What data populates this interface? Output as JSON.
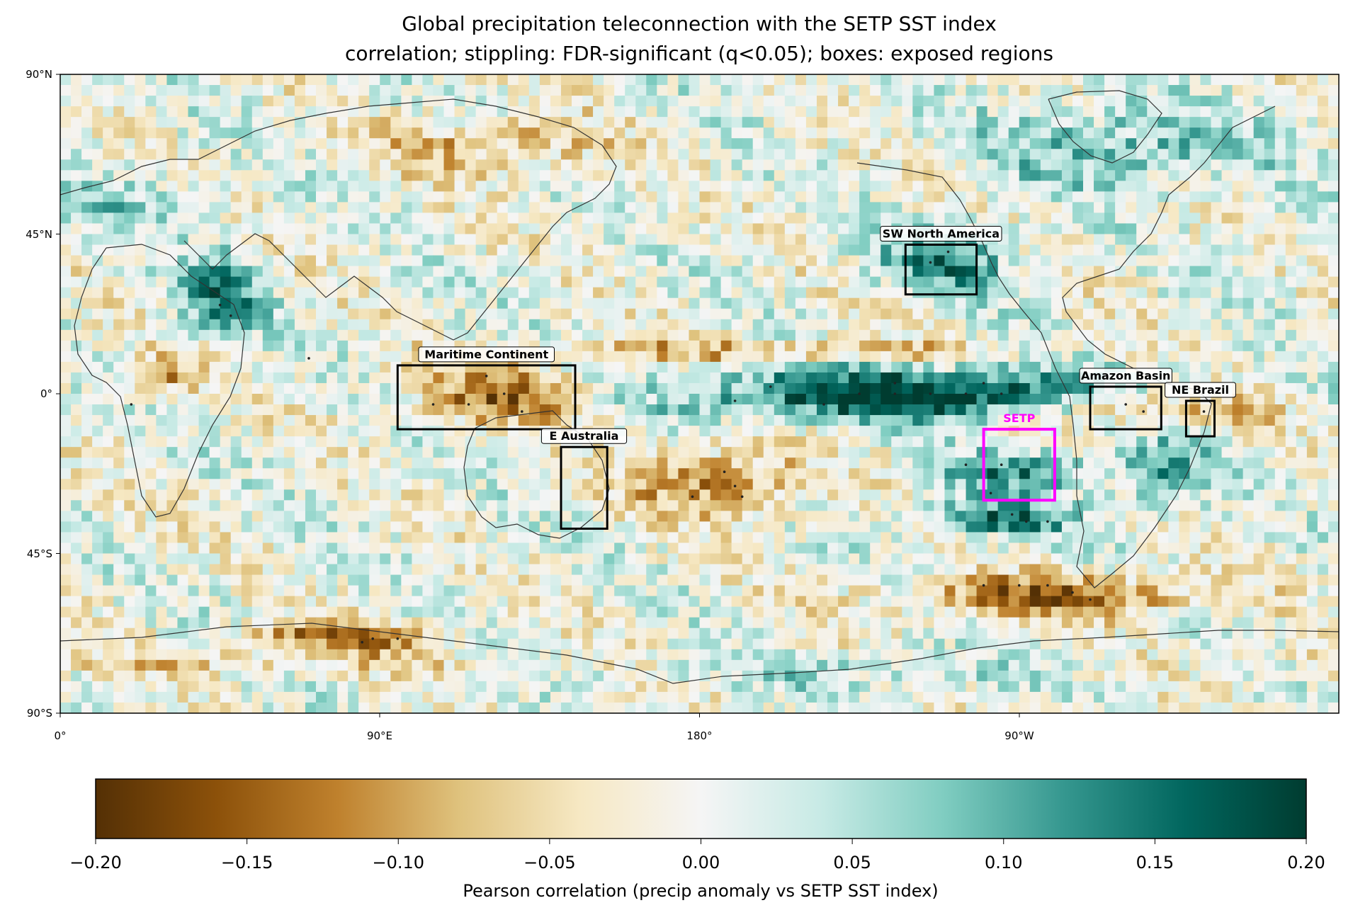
{
  "title_line1": "Global precipitation teleconnection with the SETP SST index",
  "title_line2": "correlation; stippling: FDR-significant (q<0.05); boxes: exposed regions",
  "lat_ticks": [
    "90°N",
    "45°N",
    "0°",
    "45°S",
    "90°S"
  ],
  "lon_ticks": [
    "0°",
    "90°E",
    "180°",
    "90°W"
  ],
  "colorbar": {
    "label": "Pearson correlation (precip anomaly vs SETP SST index)",
    "ticks": [
      "−0.20",
      "−0.15",
      "−0.10",
      "−0.05",
      "0.00",
      "0.05",
      "0.10",
      "0.15",
      "0.20"
    ],
    "range": [
      -0.2,
      0.2
    ],
    "colormap": "BrBG",
    "colors": [
      "#543005",
      "#8c510a",
      "#bf812d",
      "#dfc27d",
      "#f6e8c3",
      "#f5f5f5",
      "#c7eae5",
      "#80cdc1",
      "#35978f",
      "#01665e",
      "#003c30"
    ]
  },
  "regions": [
    {
      "name": "Maritime Continent",
      "lon": [
        95,
        145
      ],
      "lat": [
        -10,
        8
      ],
      "color": "#000000"
    },
    {
      "name": "E Australia",
      "lon": [
        141,
        154
      ],
      "lat": [
        -38,
        -15
      ],
      "color": "#000000"
    },
    {
      "name": "SW North America",
      "lon": [
        238,
        258
      ],
      "lat": [
        28,
        42
      ],
      "color": "#000000"
    },
    {
      "name": "Amazon Basin",
      "lon": [
        290,
        310
      ],
      "lat": [
        -10,
        2
      ],
      "color": "#000000"
    },
    {
      "name": "NE Brazil",
      "lon": [
        317,
        325
      ],
      "lat": [
        -12,
        -2
      ],
      "color": "#000000"
    },
    {
      "name": "SETP",
      "lon": [
        260,
        280
      ],
      "lat": [
        -30,
        -10
      ],
      "color": "#ff00ff"
    }
  ],
  "anomaly_features": [
    {
      "lon": 240,
      "lat": 0,
      "lonr": 62,
      "latr": 7,
      "v": 0.22
    },
    {
      "lon": 270,
      "lat": -22,
      "lonr": 22,
      "latr": 6,
      "v": 0.12
    },
    {
      "lon": 265,
      "lat": -35,
      "lonr": 20,
      "latr": 5,
      "v": 0.15
    },
    {
      "lon": 250,
      "lat": 38,
      "lonr": 18,
      "latr": 10,
      "v": 0.13
    },
    {
      "lon": 45,
      "lat": 28,
      "lonr": 12,
      "latr": 12,
      "v": 0.13
    },
    {
      "lon": 300,
      "lat": 70,
      "lonr": 40,
      "latr": 12,
      "v": 0.09
    },
    {
      "lon": 310,
      "lat": -22,
      "lonr": 14,
      "latr": 10,
      "v": 0.1
    },
    {
      "lon": 125,
      "lat": 0,
      "lonr": 25,
      "latr": 8,
      "v": -0.14
    },
    {
      "lon": 185,
      "lat": -25,
      "lonr": 25,
      "latr": 10,
      "v": -0.12
    },
    {
      "lon": 280,
      "lat": -57,
      "lonr": 40,
      "latr": 6,
      "v": -0.15
    },
    {
      "lon": 300,
      "lat": -3,
      "lonr": 22,
      "latr": 6,
      "v": -0.12
    },
    {
      "lon": 330,
      "lat": -5,
      "lonr": 12,
      "latr": 5,
      "v": -0.1
    },
    {
      "lon": 80,
      "lat": -68,
      "lonr": 25,
      "latr": 4,
      "v": -0.14
    },
    {
      "lon": 30,
      "lat": 5,
      "lonr": 12,
      "latr": 6,
      "v": -0.09
    },
    {
      "lon": 120,
      "lat": 70,
      "lonr": 30,
      "latr": 8,
      "v": -0.09
    },
    {
      "lon": 200,
      "lat": 12,
      "lonr": 60,
      "latr": 3,
      "v": -0.1
    },
    {
      "lon": 20,
      "lat": 55,
      "lonr": 20,
      "latr": 10,
      "v": 0.05
    },
    {
      "lon": 60,
      "lat": -75,
      "lonr": 80,
      "latr": 5,
      "v": -0.05
    },
    {
      "lon": 220,
      "lat": -78,
      "lonr": 60,
      "latr": 5,
      "v": 0.05
    }
  ],
  "stipple_points": [
    [
      225,
      0
    ],
    [
      235,
      0
    ],
    [
      245,
      0
    ],
    [
      255,
      0
    ],
    [
      265,
      0
    ],
    [
      215,
      -3
    ],
    [
      200,
      2
    ],
    [
      190,
      -2
    ],
    [
      235,
      3
    ],
    [
      260,
      3
    ],
    [
      105,
      -3
    ],
    [
      115,
      -3
    ],
    [
      125,
      0
    ],
    [
      130,
      -5
    ],
    [
      120,
      5
    ],
    [
      70,
      10
    ],
    [
      20,
      -3
    ],
    [
      45,
      25
    ],
    [
      48,
      22
    ],
    [
      187,
      -22
    ],
    [
      190,
      -26
    ],
    [
      192,
      -29
    ],
    [
      178,
      -29
    ],
    [
      262,
      -28
    ],
    [
      268,
      -34
    ],
    [
      272,
      -36
    ],
    [
      278,
      -36
    ],
    [
      265,
      -20
    ],
    [
      255,
      -20
    ],
    [
      250,
      40
    ],
    [
      245,
      37
    ],
    [
      260,
      -54
    ],
    [
      270,
      -54
    ],
    [
      278,
      -54
    ],
    [
      285,
      -56
    ],
    [
      290,
      -58
    ],
    [
      300,
      -3
    ],
    [
      305,
      -5
    ],
    [
      322,
      -5
    ],
    [
      95,
      -69
    ],
    [
      88,
      -69
    ],
    [
      85,
      -70
    ]
  ]
}
